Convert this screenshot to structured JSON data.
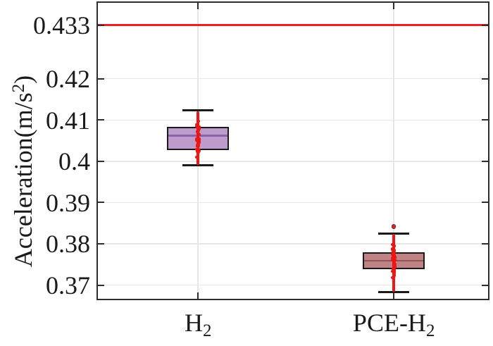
{
  "chart_data": {
    "type": "boxplot",
    "title": "",
    "ylabel": {
      "prefix": "Acceleration(m/s",
      "sup": "2",
      "suffix": ")"
    },
    "ylim": [
      0.3664,
      0.4384
    ],
    "grid": true,
    "yticks": [
      {
        "value": 0.37,
        "label": "0.37"
      },
      {
        "value": 0.38,
        "label": "0.38"
      },
      {
        "value": 0.39,
        "label": "0.39"
      },
      {
        "value": 0.4,
        "label": "0.4"
      },
      {
        "value": 0.41,
        "label": "0.41"
      },
      {
        "value": 0.42,
        "label": "0.42"
      },
      {
        "value": 0.433,
        "label": "0.433"
      }
    ],
    "categories": [
      {
        "text": "H",
        "sub": "2"
      },
      {
        "text": "PCE-H",
        "sub": "2"
      }
    ],
    "refline": {
      "value": 0.433,
      "color": "#ec2127"
    },
    "boxes": [
      {
        "category": "H2",
        "whisker_low": 0.399,
        "q1": 0.4027,
        "median": 0.4062,
        "q3": 0.4084,
        "whisker_high": 0.4123,
        "outliers": [],
        "fill": "#bd9ccb",
        "median_color": "#8a63a8"
      },
      {
        "category": "PCE-H2",
        "whisker_low": 0.3683,
        "q1": 0.3738,
        "median": 0.3759,
        "q3": 0.378,
        "whisker_high": 0.3825,
        "outliers": [
          0.3842
        ],
        "fill": "#bf8386",
        "median_color": "#8e5458"
      }
    ],
    "scatter_overlay": {
      "color": "#ef1515",
      "outlier_fill": "#ce2a2a",
      "outlier_edge": "#8c1a1a",
      "description": "red jittered sample points drawn over each box spanning whisker range"
    },
    "colors": {
      "axis": "#2e2e2e",
      "grid": "#e7e7e7",
      "text": "#1a1a1a",
      "box_edge": "#1a1a1a"
    }
  }
}
